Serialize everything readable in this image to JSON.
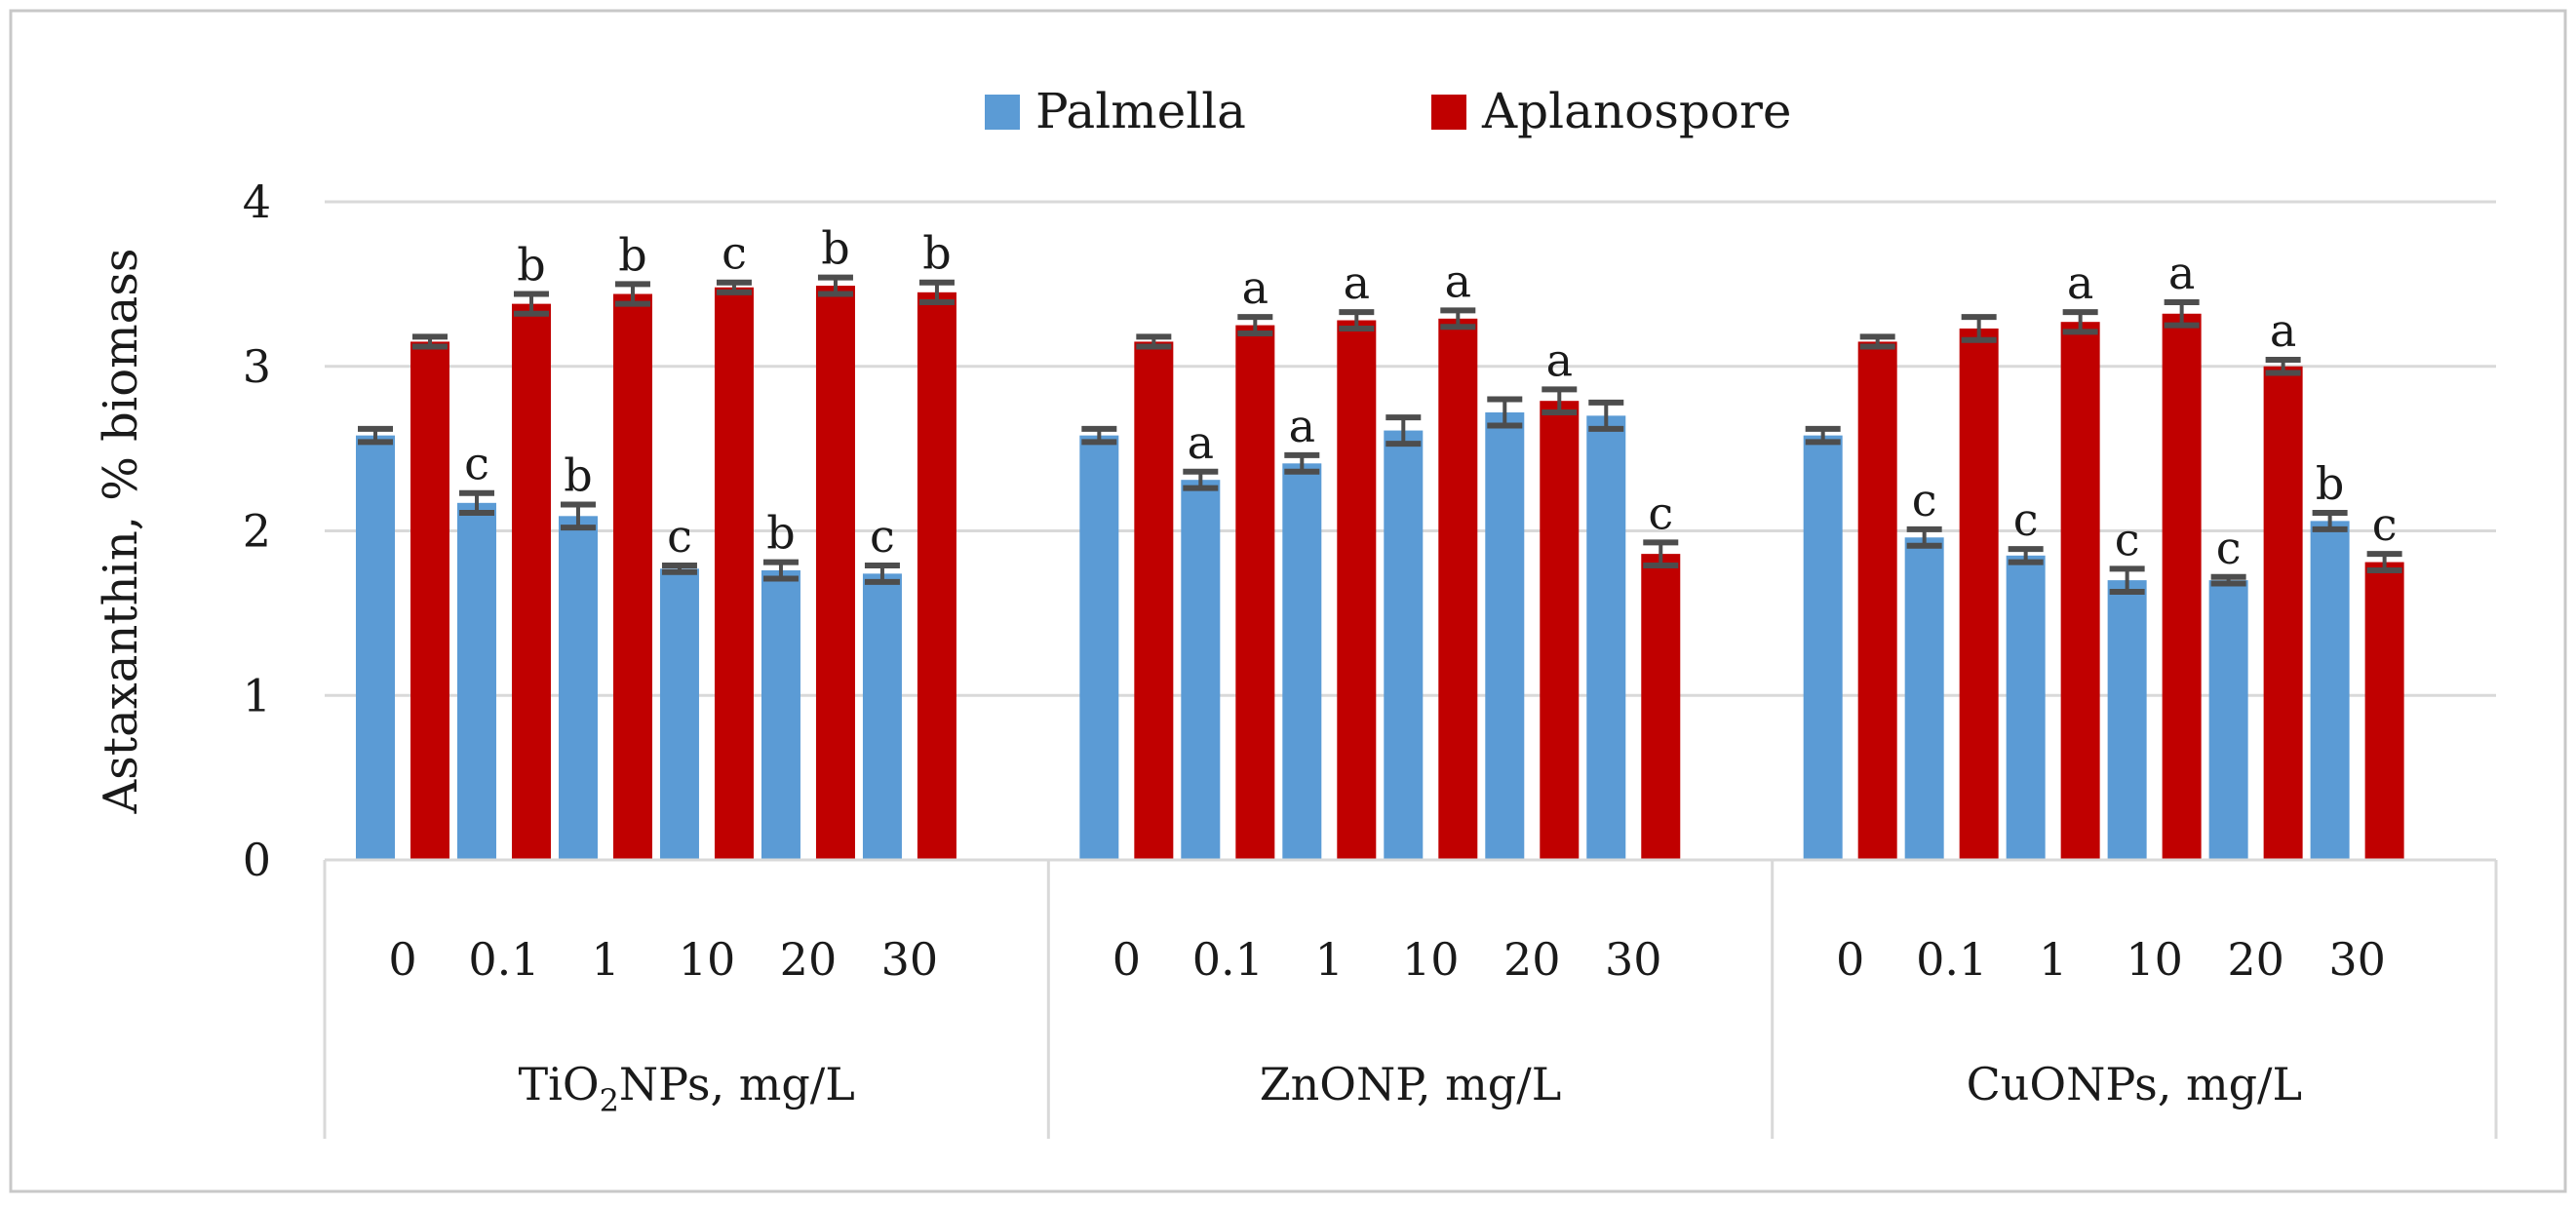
{
  "chart_data": {
    "type": "bar",
    "ylabel": "Astaxanthin, % biomass",
    "ylim": [
      0,
      4
    ],
    "yticks": [
      0,
      1,
      2,
      3,
      4
    ],
    "grid": true,
    "legend_position": "top-center",
    "colors": {
      "Palmella": "#5B9BD5",
      "Aplanospore": "#C00000",
      "error_bar": "#4D4D4D"
    },
    "sub_categories": [
      "0",
      "0.1",
      "1",
      "10",
      "20",
      "30"
    ],
    "groups": [
      {
        "name": "TiO2NPs, mg/L",
        "label_parts": [
          "TiO",
          "2",
          "NPs, mg/L"
        ],
        "series": [
          {
            "name": "Palmella",
            "values": [
              2.58,
              2.17,
              2.09,
              1.77,
              1.76,
              1.74
            ],
            "errors": [
              0.04,
              0.06,
              0.07,
              0.02,
              0.05,
              0.05
            ],
            "letters": [
              "",
              "c",
              "b",
              "c",
              "b",
              "c"
            ]
          },
          {
            "name": "Aplanospore",
            "values": [
              3.15,
              3.38,
              3.44,
              3.48,
              3.49,
              3.45
            ],
            "errors": [
              0.03,
              0.06,
              0.06,
              0.03,
              0.05,
              0.06
            ],
            "letters": [
              "",
              "b",
              "b",
              "c",
              "b",
              "b"
            ]
          }
        ]
      },
      {
        "name": "ZnONP, mg/L",
        "label_parts": [
          "ZnONP, mg/L"
        ],
        "series": [
          {
            "name": "Palmella",
            "values": [
              2.58,
              2.31,
              2.41,
              2.61,
              2.72,
              2.7
            ],
            "errors": [
              0.04,
              0.05,
              0.05,
              0.08,
              0.08,
              0.08
            ],
            "letters": [
              "",
              "a",
              "a",
              "",
              "",
              ""
            ]
          },
          {
            "name": "Aplanospore",
            "values": [
              3.15,
              3.25,
              3.28,
              3.29,
              2.79,
              1.86
            ],
            "errors": [
              0.03,
              0.05,
              0.05,
              0.05,
              0.07,
              0.07
            ],
            "letters": [
              "",
              "a",
              "a",
              "a",
              "a",
              "c"
            ]
          }
        ]
      },
      {
        "name": "CuONPs, mg/L",
        "label_parts": [
          "CuONPs, mg/L"
        ],
        "series": [
          {
            "name": "Palmella",
            "values": [
              2.58,
              1.96,
              1.85,
              1.7,
              1.7,
              2.06
            ],
            "errors": [
              0.04,
              0.05,
              0.04,
              0.07,
              0.02,
              0.05
            ],
            "letters": [
              "",
              "c",
              "c",
              "c",
              "c",
              "b"
            ]
          },
          {
            "name": "Aplanospore",
            "values": [
              3.15,
              3.23,
              3.27,
              3.32,
              3.0,
              1.81
            ],
            "errors": [
              0.03,
              0.07,
              0.06,
              0.07,
              0.04,
              0.05
            ],
            "letters": [
              "",
              "",
              "a",
              "a",
              "a",
              "c"
            ]
          }
        ]
      }
    ]
  }
}
